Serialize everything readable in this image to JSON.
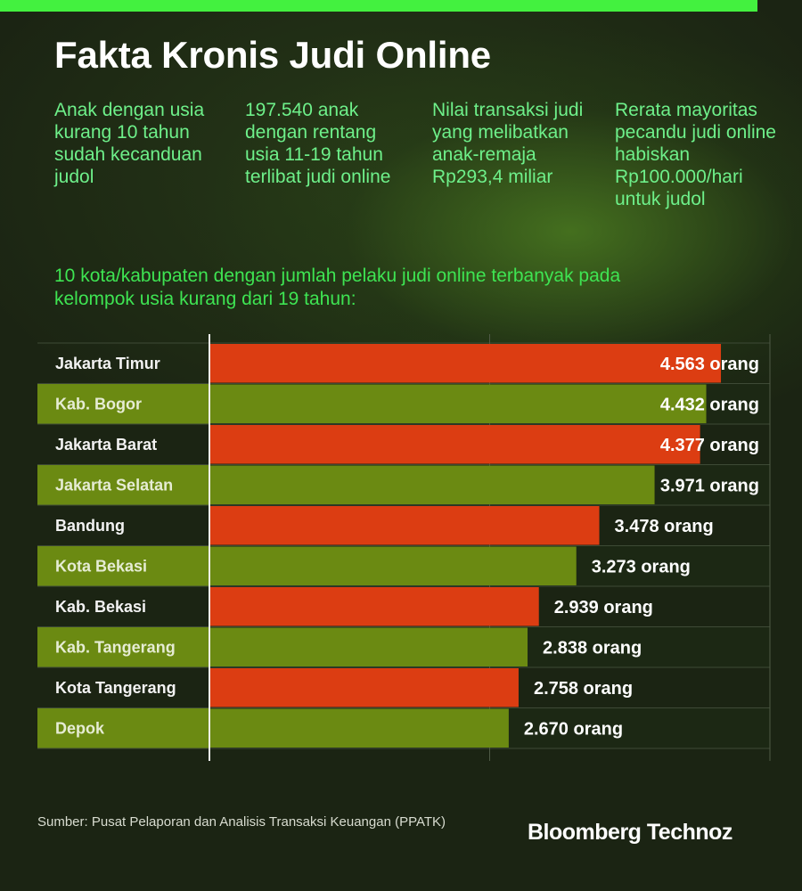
{
  "title": "Fakta Kronis Judi Online",
  "facts": [
    "Anak dengan usia kurang 10 tahun sudah kecanduan judol",
    "197.540 anak dengan rentang usia 11-19 tahun terlibat judi online",
    "Nilai transaksi judi yang melibatkan anak-remaja Rp293,4 miliar",
    "Rerata mayoritas pecandu judi online habiskan Rp100.000/hari untuk judol"
  ],
  "colors": {
    "accent_green": "#43f13f",
    "bar_red": "#dc3d12",
    "bar_green": "#6b8a12"
  },
  "chart_data": {
    "type": "bar",
    "orientation": "horizontal",
    "title": "10 kota/kabupaten dengan jumlah pelaku judi online terbanyak pada kelompok usia kurang dari 19 tahun:",
    "categories": [
      "Jakarta Timur",
      "Kab. Bogor",
      "Jakarta Barat",
      "Jakarta Selatan",
      "Bandung",
      "Kota Bekasi",
      "Kab. Bekasi",
      "Kab. Tangerang",
      "Kota Tangerang",
      "Depok"
    ],
    "values": [
      4563,
      4432,
      4377,
      3971,
      3478,
      3273,
      2939,
      2838,
      2758,
      2670
    ],
    "value_labels": [
      "4.563 orang",
      "4.432 orang",
      "4.377 orang",
      "3.971 orang",
      "3.478 orang",
      "3.273 orang",
      "2.939 orang",
      "2.838 orang",
      "2.758 orang",
      "2.670 orang"
    ],
    "xlim": [
      0,
      5000
    ],
    "grid": true
  },
  "source": "Sumber:  Pusat Pelaporan dan Analisis Transaksi Keuangan (PPATK)",
  "logo": "Bloomberg Technoz"
}
